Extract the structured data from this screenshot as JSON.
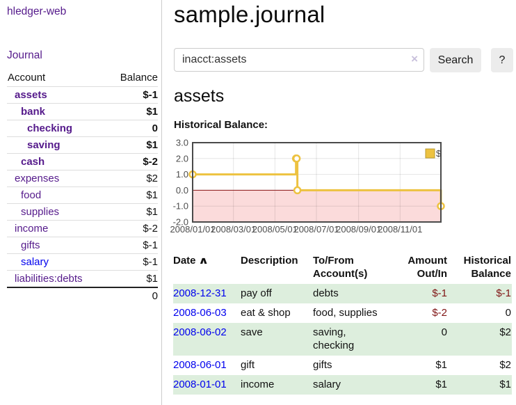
{
  "sidebar": {
    "brand": "hledger-web",
    "journal_link": "Journal",
    "table": {
      "account_header": "Account",
      "balance_header": "Balance",
      "rows": [
        {
          "name": "assets",
          "balance": "$-1"
        },
        {
          "name": "bank",
          "balance": "$1"
        },
        {
          "name": "checking",
          "balance": "0"
        },
        {
          "name": "saving",
          "balance": "$1"
        },
        {
          "name": "cash",
          "balance": "$-2"
        },
        {
          "name": "expenses",
          "balance": "$2"
        },
        {
          "name": "food",
          "balance": "$1"
        },
        {
          "name": "supplies",
          "balance": "$1"
        },
        {
          "name": "income",
          "balance": "$-2"
        },
        {
          "name": "gifts",
          "balance": "$-1"
        },
        {
          "name": "salary",
          "balance": "$-1"
        },
        {
          "name": "liabilities:debts",
          "balance": "$1"
        }
      ],
      "total": "0"
    }
  },
  "main": {
    "title": "sample.journal",
    "search": {
      "value": "inacct:assets",
      "clear_icon": "×",
      "search_button": "Search",
      "help_button": "?"
    },
    "account_heading": "assets",
    "chart_title": "Historical Balance:"
  },
  "chart_data": {
    "type": "line",
    "step": true,
    "title": "Historical Balance",
    "series": [
      {
        "name": "$",
        "color": "#edc240",
        "points": [
          {
            "date": "2008-01-01",
            "value": 1
          },
          {
            "date": "2008-06-01",
            "value": 2
          },
          {
            "date": "2008-06-02",
            "value": 2
          },
          {
            "date": "2008-06-03",
            "value": 0
          },
          {
            "date": "2008-12-31",
            "value": -1
          }
        ]
      }
    ],
    "x_range": [
      "2008-01-01",
      "2008-12-31"
    ],
    "x_ticks": [
      "2008/01/01",
      "2008/03/01",
      "2008/05/01",
      "2008/07/01",
      "2008/09/01",
      "2008/11/01"
    ],
    "y_ticks": [
      3,
      2,
      1,
      0,
      -1,
      -2
    ],
    "ylim": [
      -2,
      3
    ],
    "grid": true,
    "legend_position": "top-right",
    "negative_region_color": "#fbdbdb",
    "zero_line_color": "#8b1414"
  },
  "transactions": {
    "headers": {
      "date": "Date",
      "sort_indicator": "∧",
      "description": "Description",
      "account": "To/From Account(s)",
      "amount": "Amount Out/In",
      "balance": "Historical Balance"
    },
    "rows": [
      {
        "date": "2008-12-31",
        "description": "pay off",
        "account": "debts",
        "amount": "$-1",
        "balance": "$-1"
      },
      {
        "date": "2008-06-03",
        "description": "eat & shop",
        "account": "food, supplies",
        "amount": "$-2",
        "balance": "0"
      },
      {
        "date": "2008-06-02",
        "description": "save",
        "account": "saving, checking",
        "amount": "0",
        "balance": "$2"
      },
      {
        "date": "2008-06-01",
        "description": "gift",
        "account": "gifts",
        "amount": "$1",
        "balance": "$2"
      },
      {
        "date": "2008-01-01",
        "description": "income",
        "account": "salary",
        "amount": "$1",
        "balance": "$1"
      }
    ]
  }
}
